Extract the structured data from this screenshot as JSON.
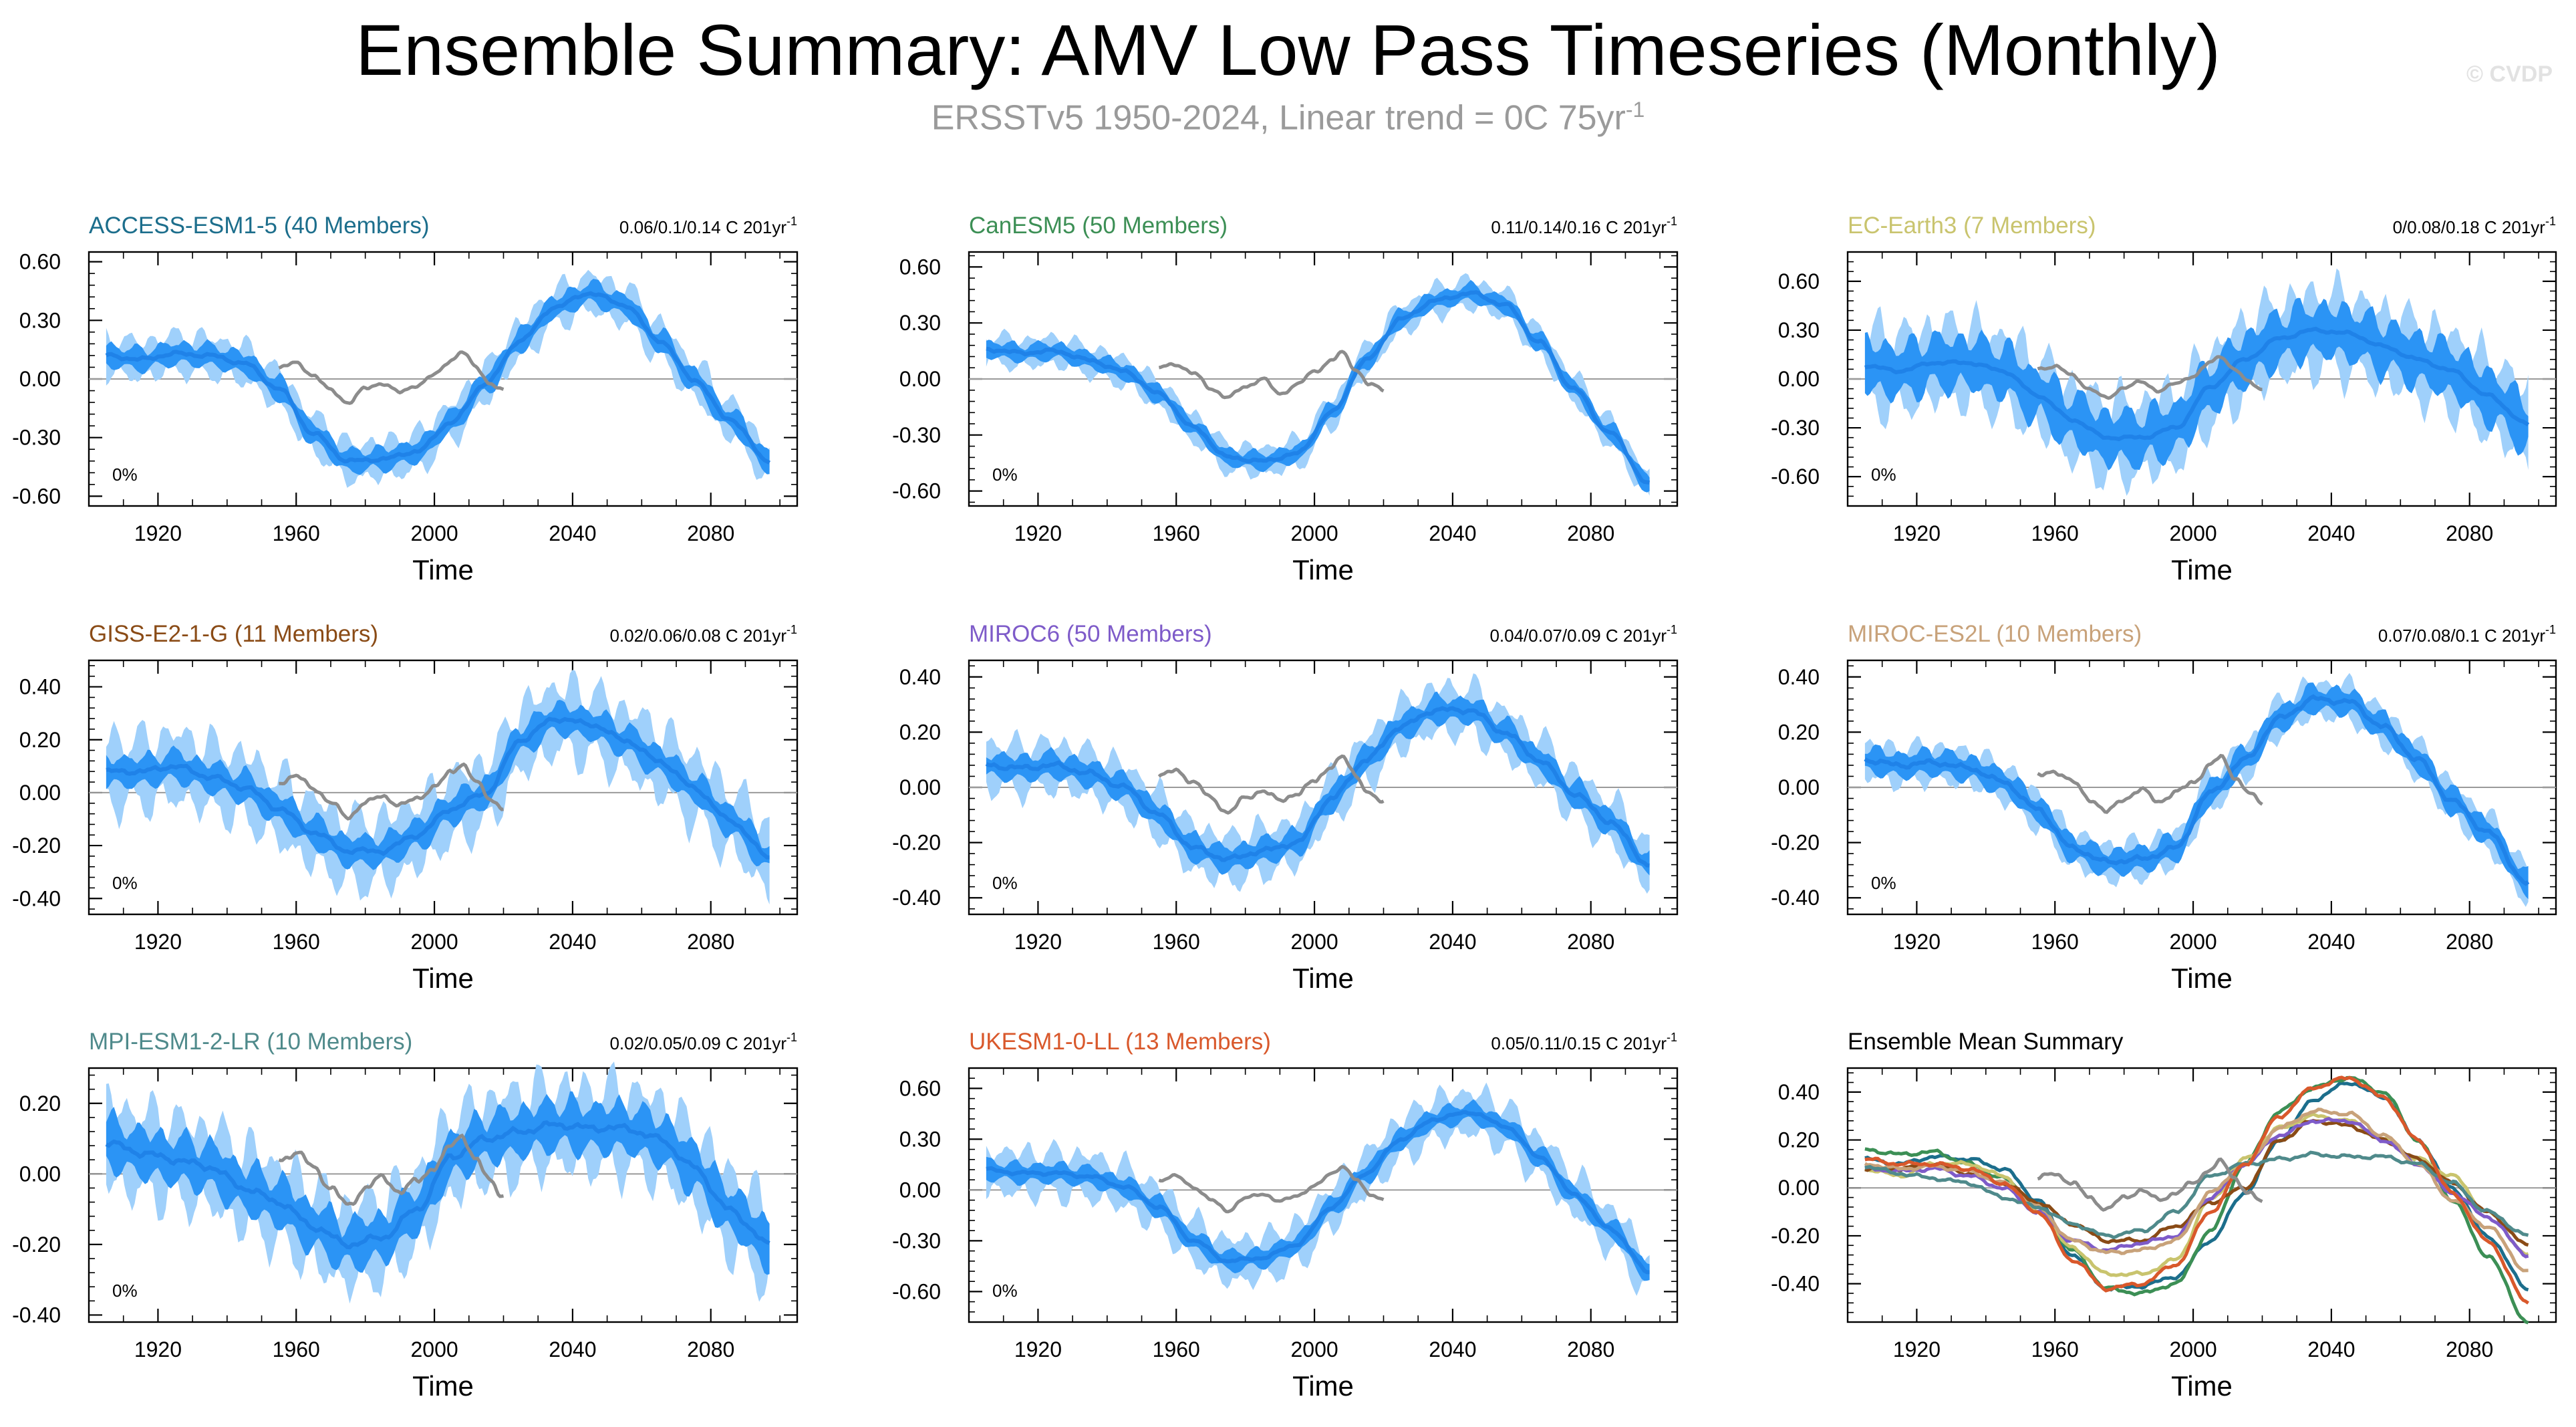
{
  "title": "Ensemble Summary: AMV Low Pass Timeseries (Monthly)",
  "subtitle_main": "ERSSTv5 1950-2024, Linear trend = 0C 75yr",
  "subtitle_sup": "-1",
  "watermark": "© CVDP",
  "colors": {
    "mean": "#1f82e8",
    "inner": "#2b94f5",
    "outer": "#9fd0fb",
    "obs": "#8c8c8c",
    "zero": "#9a9a9a"
  },
  "chart_data": [
    {
      "type": "area",
      "title": "ACCESS-ESM1-5 (40 Members)",
      "title_color": "#1c6e8c",
      "trend_label": "0.06/0.1/0.14 C 201yr",
      "trend_sup": "-1",
      "percent_label": "0%",
      "xlabel": "Time",
      "xlim": [
        1900,
        2105
      ],
      "xticks": [
        1920,
        1960,
        2000,
        2040,
        2080
      ],
      "ylim": [
        -0.65,
        0.65
      ],
      "yticks": [
        -0.6,
        -0.3,
        0.0,
        0.3,
        0.6
      ],
      "ytick_labels": [
        "-0.60",
        "-0.30",
        "0.00",
        "0.30",
        "0.60"
      ],
      "ensemble_mean": {
        "x": [
          1905,
          1915,
          1925,
          1935,
          1945,
          1955,
          1965,
          1975,
          1985,
          1995,
          2005,
          2015,
          2025,
          2035,
          2045,
          2055,
          2065,
          2075,
          2085,
          2097
        ],
        "y": [
          0.12,
          0.1,
          0.13,
          0.12,
          0.08,
          -0.05,
          -0.28,
          -0.42,
          -0.41,
          -0.37,
          -0.22,
          -0.02,
          0.2,
          0.37,
          0.44,
          0.38,
          0.2,
          0.0,
          -0.2,
          -0.42
        ]
      },
      "inner_spread": 0.05,
      "outer_spread": 0.09,
      "observed": {
        "x": [
          1955,
          1960,
          1965,
          1970,
          1975,
          1980,
          1985,
          1990,
          1995,
          2000,
          2005,
          2008,
          2012,
          2016,
          2020
        ],
        "y": [
          0.06,
          0.08,
          0.02,
          -0.06,
          -0.12,
          -0.05,
          -0.02,
          -0.07,
          -0.03,
          0.02,
          0.1,
          0.14,
          0.06,
          -0.02,
          -0.06
        ]
      }
    },
    {
      "type": "area",
      "title": "CanESM5 (50 Members)",
      "title_color": "#3c8f55",
      "trend_label": "0.11/0.14/0.16 C 201yr",
      "trend_sup": "-1",
      "percent_label": "0%",
      "xlabel": "Time",
      "xlim": [
        1900,
        2105
      ],
      "xticks": [
        1920,
        1960,
        2000,
        2040,
        2080
      ],
      "ylim": [
        -0.68,
        0.68
      ],
      "yticks": [
        -0.6,
        -0.3,
        0.0,
        0.3,
        0.6
      ],
      "ytick_labels": [
        "-0.60",
        "-0.30",
        "0.00",
        "0.30",
        "0.60"
      ],
      "ensemble_mean": {
        "x": [
          1905,
          1915,
          1925,
          1935,
          1945,
          1955,
          1965,
          1975,
          1985,
          1995,
          2005,
          2015,
          2025,
          2035,
          2045,
          2055,
          2065,
          2075,
          2085,
          2097
        ],
        "y": [
          0.16,
          0.14,
          0.15,
          0.1,
          0.04,
          -0.08,
          -0.26,
          -0.42,
          -0.44,
          -0.4,
          -0.18,
          0.1,
          0.32,
          0.42,
          0.46,
          0.4,
          0.2,
          -0.05,
          -0.28,
          -0.56
        ]
      },
      "inner_spread": 0.04,
      "outer_spread": 0.07,
      "observed": {
        "x": [
          1955,
          1960,
          1965,
          1970,
          1975,
          1980,
          1985,
          1990,
          1995,
          2000,
          2005,
          2008,
          2012,
          2016,
          2020
        ],
        "y": [
          0.06,
          0.08,
          0.03,
          -0.05,
          -0.1,
          -0.04,
          0.0,
          -0.08,
          -0.03,
          0.04,
          0.1,
          0.14,
          0.05,
          -0.03,
          -0.06
        ]
      }
    },
    {
      "type": "area",
      "title": "EC-Earth3 (7 Members)",
      "title_color": "#c9c46e",
      "trend_label": "0/0.08/0.18 C 201yr",
      "trend_sup": "-1",
      "percent_label": "0%",
      "xlabel": "Time",
      "xlim": [
        1900,
        2105
      ],
      "xticks": [
        1920,
        1960,
        2000,
        2040,
        2080
      ],
      "ylim": [
        -0.78,
        0.78
      ],
      "yticks": [
        -0.6,
        -0.3,
        0.0,
        0.3,
        0.6
      ],
      "ytick_labels": [
        "-0.60",
        "-0.30",
        "0.00",
        "0.30",
        "0.60"
      ],
      "ensemble_mean": {
        "x": [
          1905,
          1915,
          1925,
          1935,
          1945,
          1955,
          1965,
          1975,
          1985,
          1995,
          2005,
          2015,
          2025,
          2035,
          2045,
          2055,
          2065,
          2075,
          2085,
          2097
        ],
        "y": [
          0.08,
          0.05,
          0.1,
          0.1,
          0.05,
          -0.1,
          -0.25,
          -0.36,
          -0.36,
          -0.3,
          -0.05,
          0.12,
          0.25,
          0.3,
          0.28,
          0.2,
          0.12,
          0.05,
          -0.1,
          -0.28
        ]
      },
      "inner_spread": 0.14,
      "outer_spread": 0.22,
      "observed": {
        "x": [
          1955,
          1960,
          1965,
          1970,
          1975,
          1980,
          1985,
          1990,
          1995,
          2000,
          2005,
          2008,
          2012,
          2016,
          2020
        ],
        "y": [
          0.06,
          0.08,
          0.02,
          -0.06,
          -0.12,
          -0.05,
          -0.02,
          -0.07,
          -0.03,
          0.02,
          0.1,
          0.14,
          0.06,
          -0.02,
          -0.06
        ]
      }
    },
    {
      "type": "area",
      "title": "GISS-E2-1-G (11 Members)",
      "title_color": "#8a4b16",
      "trend_label": "0.02/0.06/0.08 C 201yr",
      "trend_sup": "-1",
      "percent_label": "0%",
      "xlabel": "Time",
      "xlim": [
        1900,
        2105
      ],
      "xticks": [
        1920,
        1960,
        2000,
        2040,
        2080
      ],
      "ylim": [
        -0.46,
        0.5
      ],
      "yticks": [
        -0.4,
        -0.2,
        0.0,
        0.2,
        0.4
      ],
      "ytick_labels": [
        "-0.40",
        "-0.20",
        "0.00",
        "0.20",
        "0.40"
      ],
      "ensemble_mean": {
        "x": [
          1905,
          1915,
          1925,
          1935,
          1945,
          1955,
          1965,
          1975,
          1985,
          1995,
          2005,
          2015,
          2025,
          2035,
          2045,
          2055,
          2065,
          2075,
          2085,
          2097
        ],
        "y": [
          0.08,
          0.08,
          0.1,
          0.06,
          0.02,
          -0.06,
          -0.15,
          -0.22,
          -0.22,
          -0.16,
          -0.06,
          0.0,
          0.2,
          0.28,
          0.26,
          0.2,
          0.12,
          0.02,
          -0.1,
          -0.24
        ]
      },
      "inner_spread": 0.05,
      "outer_spread": 0.12,
      "observed": {
        "x": [
          1955,
          1960,
          1965,
          1970,
          1975,
          1980,
          1985,
          1990,
          1995,
          2000,
          2005,
          2008,
          2012,
          2016,
          2020
        ],
        "y": [
          0.04,
          0.06,
          0.02,
          -0.04,
          -0.09,
          -0.04,
          -0.01,
          -0.05,
          -0.02,
          0.02,
          0.08,
          0.11,
          0.04,
          -0.02,
          -0.06
        ]
      }
    },
    {
      "type": "area",
      "title": "MIROC6 (50 Members)",
      "title_color": "#7e5bc9",
      "trend_label": "0.04/0.07/0.09 C 201yr",
      "trend_sup": "-1",
      "percent_label": "0%",
      "xlabel": "Time",
      "xlim": [
        1900,
        2105
      ],
      "xticks": [
        1920,
        1960,
        2000,
        2040,
        2080
      ],
      "ylim": [
        -0.46,
        0.46
      ],
      "yticks": [
        -0.4,
        -0.2,
        0.0,
        0.2,
        0.4
      ],
      "ytick_labels": [
        "-0.40",
        "-0.20",
        "0.00",
        "0.20",
        "0.40"
      ],
      "ensemble_mean": {
        "x": [
          1905,
          1915,
          1925,
          1935,
          1945,
          1955,
          1965,
          1975,
          1985,
          1995,
          2005,
          2015,
          2025,
          2035,
          2045,
          2055,
          2065,
          2075,
          2085,
          2097
        ],
        "y": [
          0.08,
          0.07,
          0.08,
          0.05,
          0.0,
          -0.1,
          -0.22,
          -0.26,
          -0.23,
          -0.2,
          -0.04,
          0.1,
          0.22,
          0.28,
          0.28,
          0.2,
          0.1,
          -0.02,
          -0.12,
          -0.28
        ]
      },
      "inner_spread": 0.04,
      "outer_spread": 0.08,
      "observed": {
        "x": [
          1955,
          1960,
          1965,
          1970,
          1975,
          1980,
          1985,
          1990,
          1995,
          2000,
          2005,
          2008,
          2012,
          2016,
          2020
        ],
        "y": [
          0.04,
          0.06,
          0.02,
          -0.04,
          -0.09,
          -0.04,
          -0.01,
          -0.05,
          -0.02,
          0.02,
          0.08,
          0.11,
          0.04,
          -0.02,
          -0.06
        ]
      }
    },
    {
      "type": "area",
      "title": "MIROC-ES2L (10 Members)",
      "title_color": "#c8a27a",
      "trend_label": "0.07/0.08/0.1 C 201yr",
      "trend_sup": "-1",
      "percent_label": "0%",
      "xlabel": "Time",
      "xlim": [
        1900,
        2105
      ],
      "xticks": [
        1920,
        1960,
        2000,
        2040,
        2080
      ],
      "ylim": [
        -0.46,
        0.46
      ],
      "yticks": [
        -0.4,
        -0.2,
        0.0,
        0.2,
        0.4
      ],
      "ytick_labels": [
        "-0.40",
        "-0.20",
        "0.00",
        "0.20",
        "0.40"
      ],
      "ensemble_mean": {
        "x": [
          1905,
          1915,
          1925,
          1935,
          1945,
          1955,
          1965,
          1975,
          1985,
          1995,
          2005,
          2015,
          2025,
          2035,
          2045,
          2055,
          2065,
          2075,
          2085,
          2097
        ],
        "y": [
          0.1,
          0.08,
          0.09,
          0.07,
          0.02,
          -0.08,
          -0.22,
          -0.27,
          -0.26,
          -0.22,
          -0.02,
          0.1,
          0.25,
          0.32,
          0.31,
          0.22,
          0.1,
          -0.05,
          -0.16,
          -0.35
        ]
      },
      "inner_spread": 0.04,
      "outer_spread": 0.06,
      "observed": {
        "x": [
          1955,
          1960,
          1965,
          1970,
          1975,
          1980,
          1985,
          1990,
          1995,
          2000,
          2005,
          2008,
          2012,
          2016,
          2020
        ],
        "y": [
          0.04,
          0.06,
          0.02,
          -0.04,
          -0.09,
          -0.04,
          -0.01,
          -0.05,
          -0.02,
          0.02,
          0.08,
          0.11,
          0.04,
          -0.02,
          -0.06
        ]
      }
    },
    {
      "type": "area",
      "title": "MPI-ESM1-2-LR (10 Members)",
      "title_color": "#4f8a8b",
      "trend_label": "0.02/0.05/0.09 C 201yr",
      "trend_sup": "-1",
      "percent_label": "0%",
      "xlabel": "Time",
      "xlim": [
        1900,
        2105
      ],
      "xticks": [
        1920,
        1960,
        2000,
        2040,
        2080
      ],
      "ylim": [
        -0.42,
        0.3
      ],
      "yticks": [
        -0.4,
        -0.2,
        0.0,
        0.2
      ],
      "ytick_labels": [
        "-0.40",
        "-0.20",
        "0.00",
        "0.20"
      ],
      "ensemble_mean": {
        "x": [
          1905,
          1915,
          1925,
          1935,
          1945,
          1955,
          1965,
          1975,
          1985,
          1995,
          2005,
          2015,
          2025,
          2035,
          2045,
          2055,
          2065,
          2075,
          2085,
          2097
        ],
        "y": [
          0.09,
          0.06,
          0.04,
          0.02,
          -0.04,
          -0.08,
          -0.15,
          -0.2,
          -0.18,
          -0.1,
          0.05,
          0.1,
          0.12,
          0.14,
          0.13,
          0.13,
          0.1,
          0.02,
          -0.1,
          -0.2
        ]
      },
      "inner_spread": 0.06,
      "outer_spread": 0.11,
      "observed": {
        "x": [
          1955,
          1960,
          1965,
          1970,
          1975,
          1980,
          1985,
          1990,
          1995,
          2000,
          2005,
          2008,
          2012,
          2016,
          2020
        ],
        "y": [
          0.04,
          0.06,
          0.02,
          -0.04,
          -0.09,
          -0.04,
          -0.01,
          -0.05,
          -0.02,
          0.02,
          0.08,
          0.11,
          0.04,
          -0.02,
          -0.06
        ]
      }
    },
    {
      "type": "area",
      "title": "UKESM1-0-LL (13 Members)",
      "title_color": "#d9582b",
      "trend_label": "0.05/0.11/0.15 C 201yr",
      "trend_sup": "-1",
      "percent_label": "0%",
      "xlabel": "Time",
      "xlim": [
        1900,
        2105
      ],
      "xticks": [
        1920,
        1960,
        2000,
        2040,
        2080
      ],
      "ylim": [
        -0.78,
        0.72
      ],
      "yticks": [
        -0.6,
        -0.3,
        0.0,
        0.3,
        0.6
      ],
      "ytick_labels": [
        "-0.60",
        "-0.30",
        "0.00",
        "0.30",
        "0.60"
      ],
      "ensemble_mean": {
        "x": [
          1905,
          1915,
          1925,
          1935,
          1945,
          1955,
          1965,
          1975,
          1985,
          1995,
          2005,
          2015,
          2025,
          2035,
          2045,
          2055,
          2065,
          2075,
          2085,
          2097
        ],
        "y": [
          0.12,
          0.1,
          0.1,
          0.08,
          0.02,
          -0.1,
          -0.3,
          -0.42,
          -0.4,
          -0.32,
          -0.1,
          0.1,
          0.3,
          0.42,
          0.46,
          0.38,
          0.2,
          -0.02,
          -0.22,
          -0.48
        ]
      },
      "inner_spread": 0.05,
      "outer_spread": 0.12,
      "observed": {
        "x": [
          1955,
          1960,
          1965,
          1970,
          1975,
          1980,
          1985,
          1990,
          1995,
          2000,
          2005,
          2008,
          2012,
          2016,
          2020
        ],
        "y": [
          0.06,
          0.08,
          0.02,
          -0.06,
          -0.12,
          -0.05,
          -0.02,
          -0.07,
          -0.03,
          0.02,
          0.1,
          0.14,
          0.06,
          -0.02,
          -0.06
        ]
      }
    },
    {
      "type": "line",
      "title": "Ensemble Mean Summary",
      "title_color": "#000000",
      "xlabel": "Time",
      "xlim": [
        1900,
        2105
      ],
      "xticks": [
        1920,
        1960,
        2000,
        2040,
        2080
      ],
      "ylim": [
        -0.56,
        0.5
      ],
      "yticks": [
        -0.4,
        -0.2,
        0.0,
        0.2,
        0.4
      ],
      "ytick_labels": [
        "-0.40",
        "-0.20",
        "0.00",
        "0.20",
        "0.40"
      ],
      "series": [
        {
          "name": "ACCESS-ESM1-5",
          "color": "#1c6e8c",
          "values_from_panel": 0
        },
        {
          "name": "CanESM5",
          "color": "#3c8f55",
          "values_from_panel": 1
        },
        {
          "name": "EC-Earth3",
          "color": "#c9c46e",
          "values_from_panel": 2
        },
        {
          "name": "GISS-E2-1-G",
          "color": "#8a4b16",
          "values_from_panel": 3
        },
        {
          "name": "MIROC6",
          "color": "#7e5bc9",
          "values_from_panel": 4
        },
        {
          "name": "MIROC-ES2L",
          "color": "#c8a27a",
          "values_from_panel": 5
        },
        {
          "name": "MPI-ESM1-2-LR",
          "color": "#4f8a8b",
          "values_from_panel": 6
        },
        {
          "name": "UKESM1-0-LL",
          "color": "#d9582b",
          "values_from_panel": 7
        }
      ],
      "observed": {
        "x": [
          1955,
          1960,
          1965,
          1970,
          1975,
          1980,
          1985,
          1990,
          1995,
          2000,
          2005,
          2008,
          2012,
          2016,
          2020
        ],
        "y": [
          0.04,
          0.06,
          0.02,
          -0.04,
          -0.09,
          -0.04,
          -0.01,
          -0.05,
          -0.02,
          0.02,
          0.08,
          0.11,
          0.04,
          -0.02,
          -0.06
        ]
      }
    }
  ]
}
